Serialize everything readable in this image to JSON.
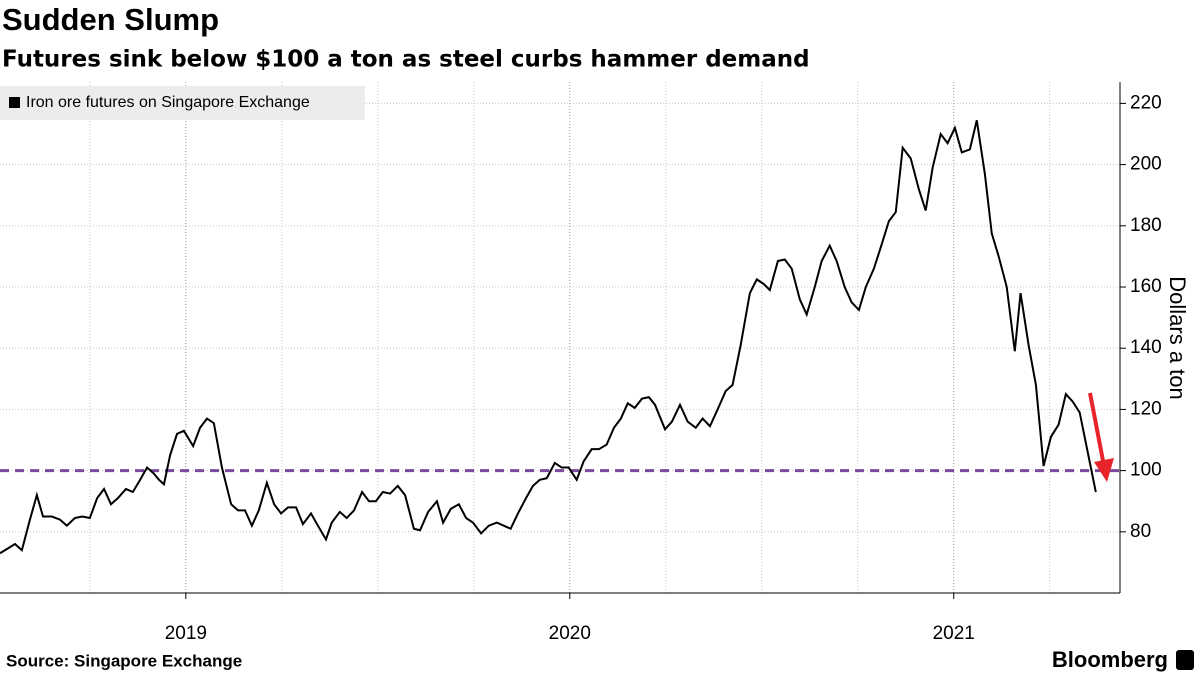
{
  "chart_data": {
    "type": "line",
    "title": "Sudden Slump",
    "subtitle": "Futures sink below $100 a ton as steel curbs hammer demand",
    "y_label": "Dollars a ton",
    "xlim": [
      2018.516,
      2021.433
    ],
    "xticks": [
      2019,
      2020,
      2021
    ],
    "xminor": [
      2018.75,
      2019.25,
      2019.5,
      2019.75,
      2020.25,
      2020.5,
      2020.75,
      2021.25
    ],
    "ylim": [
      60,
      227
    ],
    "yticks": [
      80,
      100,
      120,
      140,
      160,
      180,
      200,
      220
    ],
    "grid": true,
    "hline": {
      "value": 100,
      "color": "#7b4a9e"
    },
    "x": [
      2018.516,
      2018.542,
      2018.555,
      2018.573,
      2018.594,
      2018.612,
      2018.628,
      2018.651,
      2018.672,
      2018.69,
      2018.711,
      2018.73,
      2018.75,
      2018.769,
      2018.787,
      2018.805,
      2018.823,
      2018.844,
      2018.862,
      2018.881,
      2018.899,
      2018.917,
      2018.93,
      2018.943,
      2018.959,
      2018.977,
      2018.995,
      2019.019,
      2019.037,
      2019.055,
      2019.073,
      2019.094,
      2019.118,
      2019.136,
      2019.154,
      2019.172,
      2019.19,
      2019.211,
      2019.23,
      2019.248,
      2019.266,
      2019.287,
      2019.305,
      2019.326,
      2019.344,
      2019.365,
      2019.38,
      2019.401,
      2019.419,
      2019.438,
      2019.459,
      2019.477,
      2019.495,
      2019.513,
      2019.532,
      2019.552,
      2019.571,
      2019.594,
      2019.61,
      2019.631,
      2019.654,
      2019.67,
      2019.69,
      2019.711,
      2019.73,
      2019.748,
      2019.769,
      2019.789,
      2019.81,
      2019.828,
      2019.846,
      2019.865,
      2019.886,
      2019.904,
      2019.922,
      2019.94,
      2019.961,
      2019.979,
      2019.997,
      2020.018,
      2020.036,
      2020.057,
      2020.076,
      2020.096,
      2020.115,
      2020.133,
      2020.151,
      2020.169,
      2020.188,
      2020.206,
      2020.222,
      2020.248,
      2020.266,
      2020.287,
      2020.307,
      2020.328,
      2020.346,
      2020.365,
      2020.385,
      2020.406,
      2020.424,
      2020.445,
      2020.469,
      2020.487,
      2020.505,
      2020.521,
      2020.542,
      2020.56,
      2020.578,
      2020.599,
      2020.617,
      2020.638,
      2020.656,
      2020.677,
      2020.695,
      2020.716,
      2020.734,
      2020.753,
      2020.771,
      2020.792,
      2020.81,
      2020.831,
      2020.849,
      2020.867,
      2020.888,
      2020.909,
      2020.927,
      2020.945,
      2020.966,
      2020.984,
      2021.003,
      2021.021,
      2021.042,
      2021.06,
      2021.081,
      2021.099,
      2021.117,
      2021.138,
      2021.159,
      2021.174,
      2021.195,
      2021.214,
      2021.234,
      2021.253,
      2021.273,
      2021.292,
      2021.31,
      2021.328,
      2021.349,
      2021.37
    ],
    "series": [
      {
        "name": "Iron ore futures on Singapore Exchange",
        "color": "#000000",
        "values": [
          73,
          75,
          76,
          74,
          84,
          92,
          85,
          85,
          84,
          82,
          84.5,
          85,
          84.5,
          91,
          94,
          89,
          91,
          94,
          93,
          97,
          101,
          99,
          97,
          95.5,
          105,
          112,
          113,
          108,
          114,
          117,
          115.5,
          101,
          89,
          87,
          87,
          82,
          87,
          96,
          89,
          86,
          88,
          88,
          82.5,
          86,
          82,
          77.5,
          83,
          86.5,
          84.5,
          87,
          93,
          90,
          90,
          93,
          92.5,
          95,
          92,
          81,
          80.5,
          86.5,
          90,
          83,
          87.5,
          89,
          84.5,
          83,
          79.5,
          82,
          83,
          82,
          81,
          86,
          91,
          95,
          97,
          97.5,
          102.5,
          101,
          101,
          97,
          103,
          107,
          107,
          108.5,
          114,
          117,
          122,
          120.5,
          123.5,
          124,
          121.5,
          113.5,
          116,
          121.5,
          116,
          114,
          117,
          114.5,
          120,
          126,
          128,
          141,
          158,
          162.5,
          161,
          159,
          168.5,
          169,
          166,
          156,
          151,
          160,
          168.5,
          173.5,
          168.5,
          160,
          155,
          152.5,
          160,
          166,
          173,
          181.5,
          184.5,
          205.5,
          202,
          192,
          185,
          199,
          210,
          207,
          212,
          204,
          205,
          214.5,
          197,
          177.5,
          170,
          160,
          139,
          158,
          141,
          128,
          101.5,
          111,
          115,
          125,
          122.5,
          119,
          106,
          93
        ]
      }
    ]
  },
  "source": "Source: Singapore Exchange",
  "brand": "Bloomberg"
}
